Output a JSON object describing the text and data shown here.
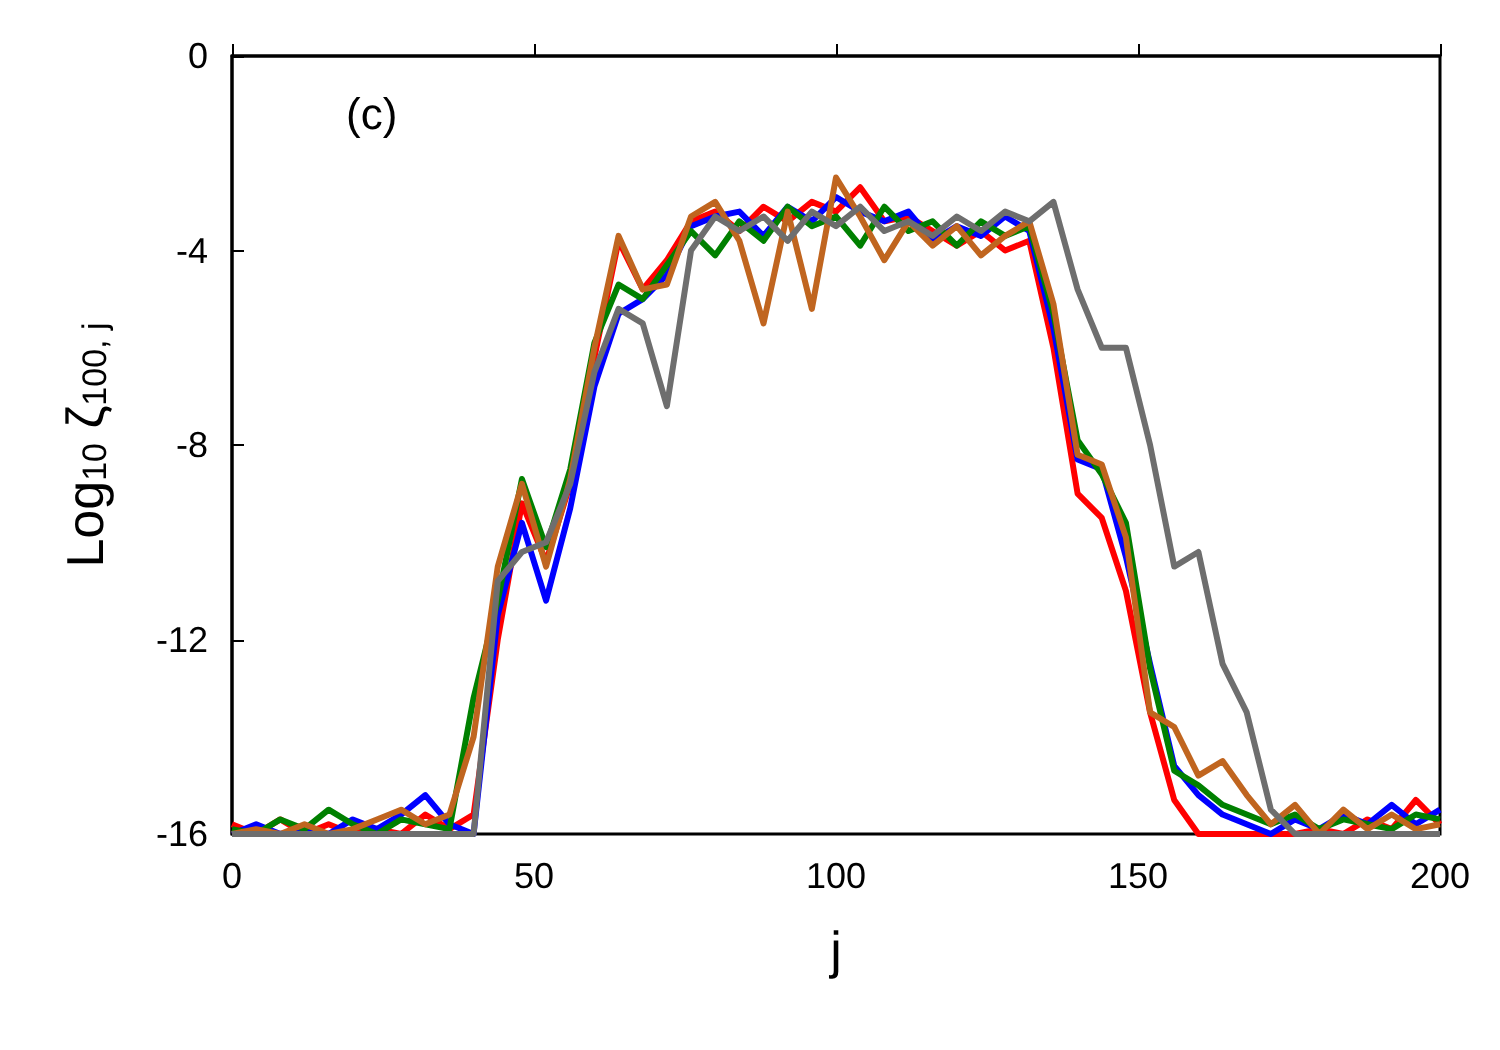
{
  "chart_data": {
    "type": "line",
    "xlabel": "j",
    "ylabel": "Log$_{10}$ ζ$_{100, j}$",
    "annotations": [
      "(c)"
    ],
    "xlim": [
      0,
      200
    ],
    "xticks": [
      0,
      50,
      100,
      150,
      200
    ],
    "ylim": [
      -16,
      0
    ],
    "yticks": [
      0,
      -4,
      -8,
      -12,
      -16
    ],
    "grid": false,
    "marker": "none",
    "line_style": "solid",
    "x": [
      0,
      4,
      8,
      12,
      16,
      20,
      24,
      28,
      32,
      36,
      40,
      44,
      48,
      52,
      56,
      60,
      64,
      68,
      72,
      76,
      80,
      84,
      88,
      92,
      96,
      100,
      104,
      108,
      112,
      116,
      120,
      124,
      128,
      132,
      136,
      140,
      144,
      148,
      152,
      156,
      160,
      164,
      168,
      172,
      176,
      180,
      184,
      188,
      192,
      196,
      200
    ],
    "series": [
      {
        "color": "#ff0000",
        "values": [
          -15.8,
          -16,
          -15.7,
          -16,
          -15.8,
          -16,
          -15.9,
          -16,
          -15.6,
          -15.9,
          -15.6,
          -12,
          -9.2,
          -10.4,
          -8.8,
          -6.2,
          -3.8,
          -4.8,
          -4.2,
          -3.4,
          -3.2,
          -3.6,
          -3.1,
          -3.4,
          -3.0,
          -3.2,
          -2.7,
          -3.4,
          -3.3,
          -3.6,
          -3.9,
          -3.6,
          -4.0,
          -3.8,
          -6.0,
          -9.0,
          -9.5,
          -11.0,
          -13.5,
          -15.3,
          -16,
          -16,
          -16,
          -16,
          -16,
          -15.9,
          -16,
          -15.7,
          -15.9,
          -15.3,
          -15.8
        ]
      },
      {
        "color": "#0000ff",
        "values": [
          -16,
          -15.8,
          -16,
          -15.9,
          -16,
          -15.7,
          -15.9,
          -15.6,
          -15.2,
          -15.8,
          -16,
          -11.5,
          -9.6,
          -11.2,
          -9.3,
          -6.8,
          -5.3,
          -5,
          -4.5,
          -3.5,
          -3.3,
          -3.2,
          -3.7,
          -3.1,
          -3.4,
          -2.9,
          -3.2,
          -3.4,
          -3.2,
          -3.8,
          -3.5,
          -3.7,
          -3.3,
          -3.6,
          -5.6,
          -8.3,
          -8.5,
          -10.3,
          -12.5,
          -14.6,
          -15.2,
          -15.6,
          -15.8,
          -16,
          -15.7,
          -15.9,
          -15.6,
          -15.8,
          -15.4,
          -15.8,
          -15.5
        ]
      },
      {
        "color": "#008000",
        "values": [
          -15.9,
          -16,
          -15.7,
          -15.9,
          -15.5,
          -15.8,
          -16,
          -15.7,
          -15.8,
          -15.9,
          -13.2,
          -11.2,
          -8.7,
          -10.1,
          -8.5,
          -5.9,
          -4.7,
          -5.0,
          -4.3,
          -3.6,
          -4.1,
          -3.4,
          -3.8,
          -3.1,
          -3.5,
          -3.3,
          -3.9,
          -3.1,
          -3.6,
          -3.4,
          -3.9,
          -3.4,
          -3.7,
          -3.5,
          -5.3,
          -7.9,
          -8.6,
          -9.6,
          -12.6,
          -14.7,
          -15.0,
          -15.4,
          -15.6,
          -15.8,
          -15.6,
          -15.9,
          -15.7,
          -15.8,
          -15.9,
          -15.6,
          -15.7
        ]
      },
      {
        "color": "#c0651f",
        "values": [
          -16,
          -15.9,
          -16,
          -15.8,
          -16,
          -15.9,
          -15.7,
          -15.5,
          -15.8,
          -15.6,
          -14,
          -10.5,
          -8.8,
          -10.5,
          -8.7,
          -6.0,
          -3.7,
          -4.8,
          -4.7,
          -3.3,
          -3.0,
          -3.8,
          -5.5,
          -3.2,
          -5.2,
          -2.5,
          -3.3,
          -4.2,
          -3.4,
          -3.9,
          -3.5,
          -4.1,
          -3.7,
          -3.4,
          -5.1,
          -8.2,
          -8.4,
          -9.9,
          -13.5,
          -13.8,
          -14.8,
          -14.5,
          -15.2,
          -15.8,
          -15.4,
          -16,
          -15.5,
          -15.9,
          -15.6,
          -15.9,
          -15.8
        ]
      },
      {
        "color": "#6e6e6e",
        "values": [
          -16,
          -16,
          -16,
          -16,
          -16,
          -16,
          -16,
          -16,
          -16,
          -16,
          -16,
          -10.8,
          -10.2,
          -10.0,
          -8.8,
          -6.5,
          -5.2,
          -5.5,
          -7.2,
          -4.0,
          -3.3,
          -3.6,
          -3.3,
          -3.8,
          -3.2,
          -3.5,
          -3.1,
          -3.6,
          -3.4,
          -3.7,
          -3.3,
          -3.6,
          -3.2,
          -3.4,
          -3.0,
          -4.8,
          -6.0,
          -6.0,
          -8.0,
          -10.5,
          -10.2,
          -12.5,
          -13.5,
          -15.5,
          -16,
          -16,
          -16,
          -16,
          -16,
          -16,
          -16
        ]
      }
    ]
  }
}
